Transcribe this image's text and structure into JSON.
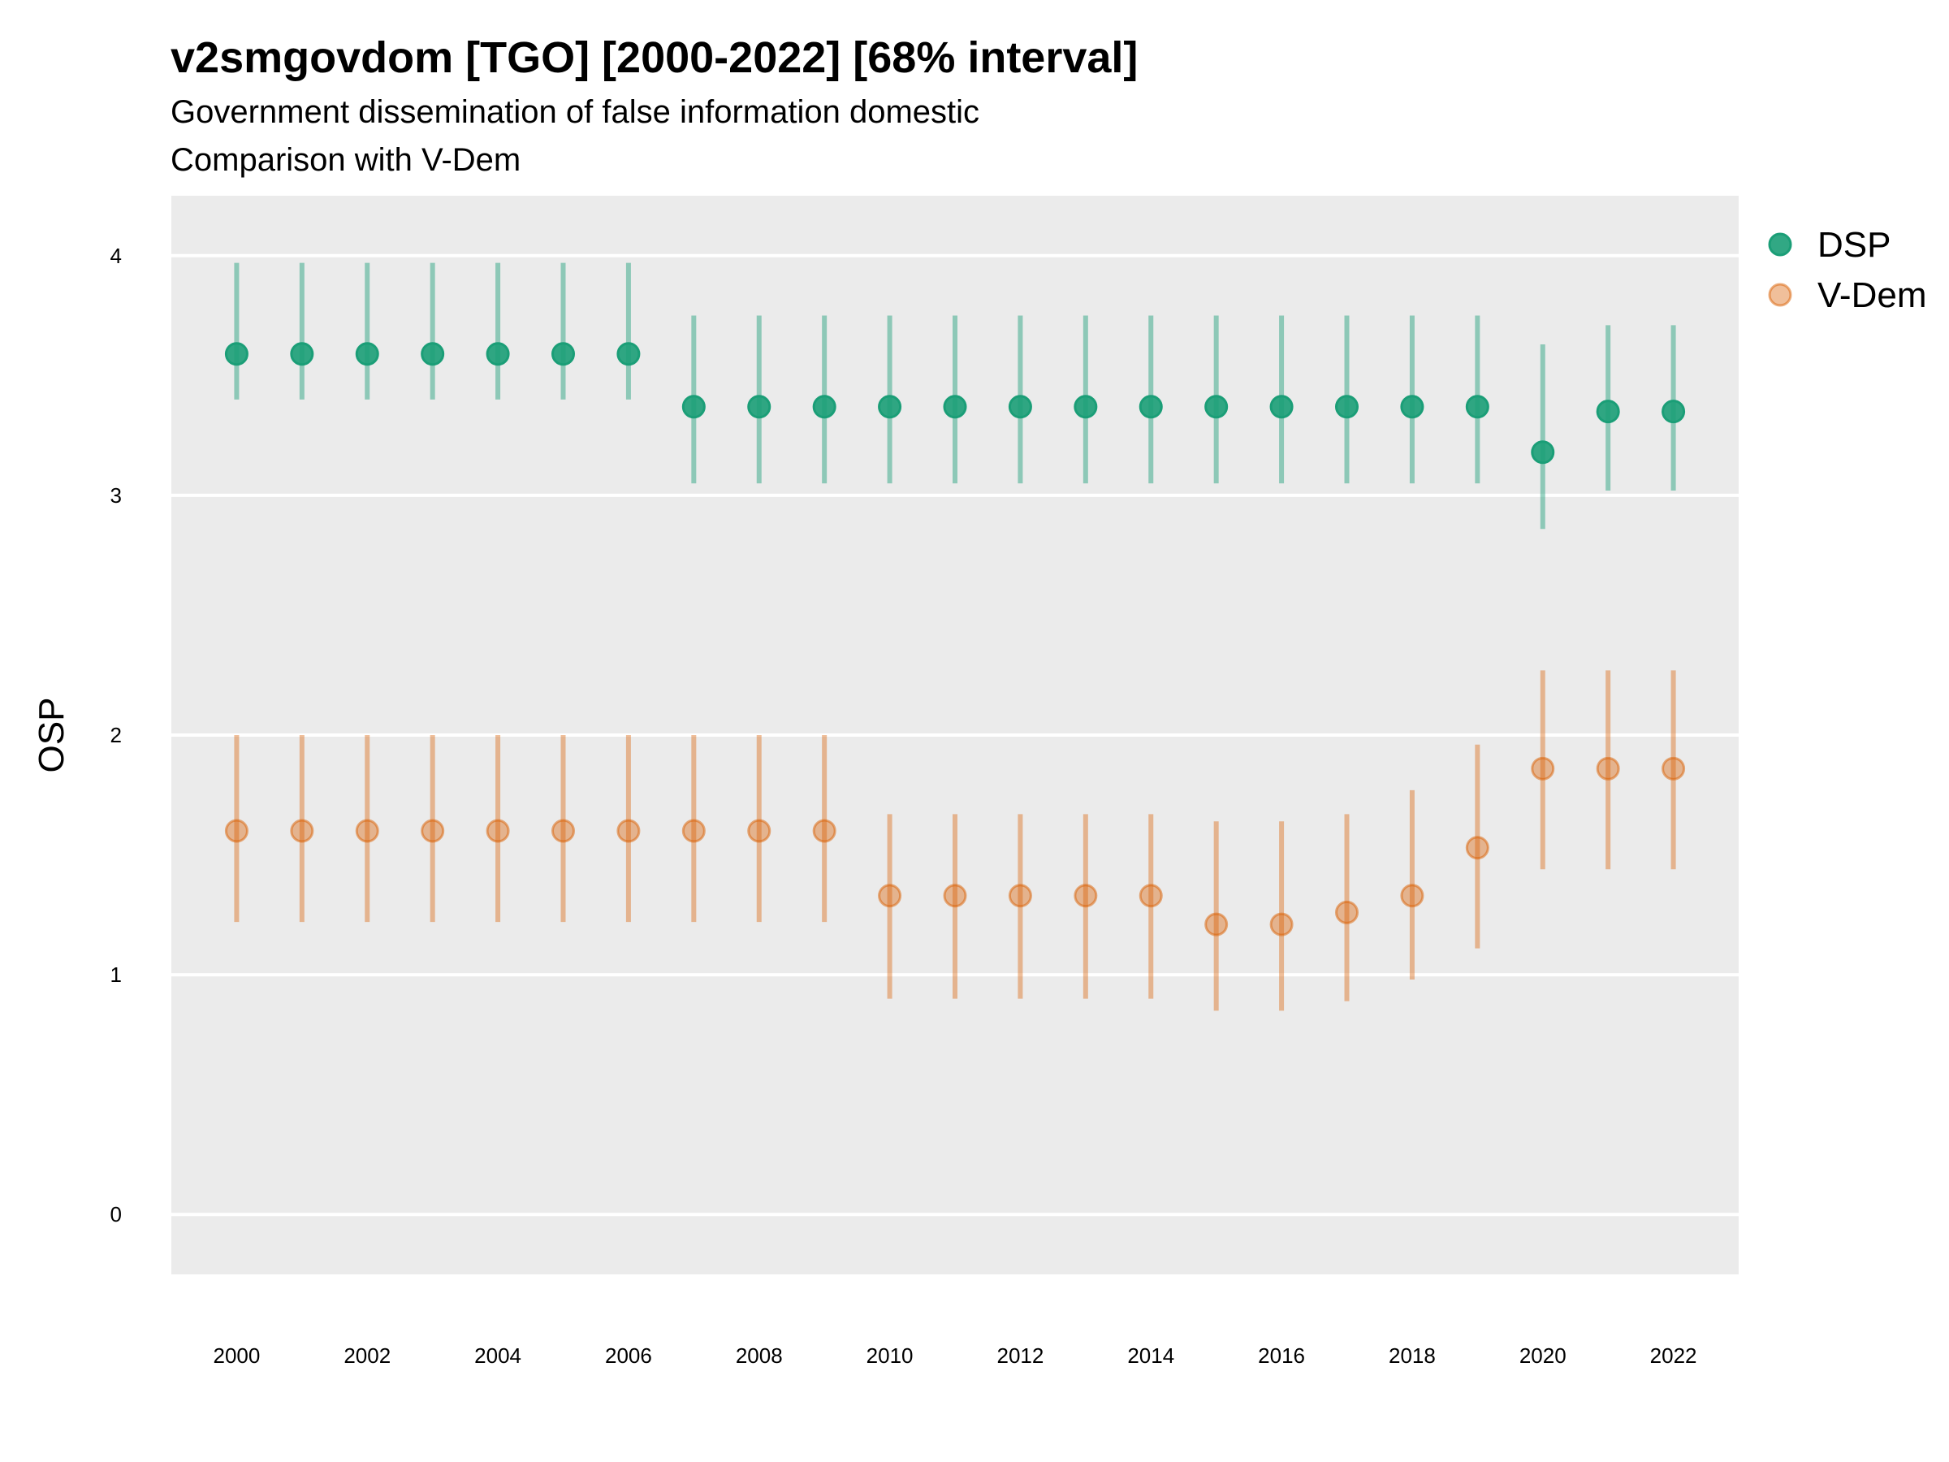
{
  "chart_data": {
    "type": "scatter",
    "title": "v2smgovdom [TGO] [2000-2022] [68% interval]",
    "subtitle": [
      "Government dissemination of false information domestic",
      "Comparison with V-Dem"
    ],
    "xlabel": "",
    "ylabel": "OSP",
    "xlim": [
      1999,
      2023
    ],
    "ylim": [
      -0.25,
      4.25
    ],
    "xticks": [
      "2000",
      "2002",
      "2004",
      "2006",
      "2008",
      "2010",
      "2012",
      "2014",
      "2016",
      "2018",
      "2020",
      "2022"
    ],
    "yticks": [
      "0",
      "1",
      "2",
      "3",
      "4"
    ],
    "grid": true,
    "legend": "right",
    "x": [
      2000,
      2001,
      2002,
      2003,
      2004,
      2005,
      2006,
      2007,
      2008,
      2009,
      2010,
      2011,
      2012,
      2013,
      2014,
      2015,
      2016,
      2017,
      2018,
      2019,
      2020,
      2021,
      2022
    ],
    "series": [
      {
        "name": "DSP",
        "color": "#1b9e77",
        "values": [
          3.59,
          3.59,
          3.59,
          3.59,
          3.59,
          3.59,
          3.59,
          3.37,
          3.37,
          3.37,
          3.37,
          3.37,
          3.37,
          3.37,
          3.37,
          3.37,
          3.37,
          3.37,
          3.37,
          3.37,
          3.18,
          3.35,
          3.35
        ],
        "lower": [
          3.4,
          3.4,
          3.4,
          3.4,
          3.4,
          3.4,
          3.4,
          3.05,
          3.05,
          3.05,
          3.05,
          3.05,
          3.05,
          3.05,
          3.05,
          3.05,
          3.05,
          3.05,
          3.05,
          3.05,
          2.86,
          3.02,
          3.02
        ],
        "upper": [
          3.97,
          3.97,
          3.97,
          3.97,
          3.97,
          3.97,
          3.97,
          3.75,
          3.75,
          3.75,
          3.75,
          3.75,
          3.75,
          3.75,
          3.75,
          3.75,
          3.75,
          3.75,
          3.75,
          3.75,
          3.63,
          3.71,
          3.71
        ]
      },
      {
        "name": "V-Dem",
        "color": "#d95f02",
        "values": [
          1.6,
          1.6,
          1.6,
          1.6,
          1.6,
          1.6,
          1.6,
          1.6,
          1.6,
          1.6,
          1.33,
          1.33,
          1.33,
          1.33,
          1.33,
          1.21,
          1.21,
          1.26,
          1.33,
          1.53,
          1.86,
          1.86,
          1.86
        ],
        "lower": [
          1.22,
          1.22,
          1.22,
          1.22,
          1.22,
          1.22,
          1.22,
          1.22,
          1.22,
          1.22,
          0.9,
          0.9,
          0.9,
          0.9,
          0.9,
          0.85,
          0.85,
          0.89,
          0.98,
          1.11,
          1.44,
          1.44,
          1.44
        ],
        "upper": [
          2.0,
          2.0,
          2.0,
          2.0,
          2.0,
          2.0,
          2.0,
          2.0,
          2.0,
          2.0,
          1.67,
          1.67,
          1.67,
          1.67,
          1.67,
          1.64,
          1.64,
          1.67,
          1.77,
          1.96,
          2.27,
          2.27,
          2.27
        ]
      }
    ]
  }
}
